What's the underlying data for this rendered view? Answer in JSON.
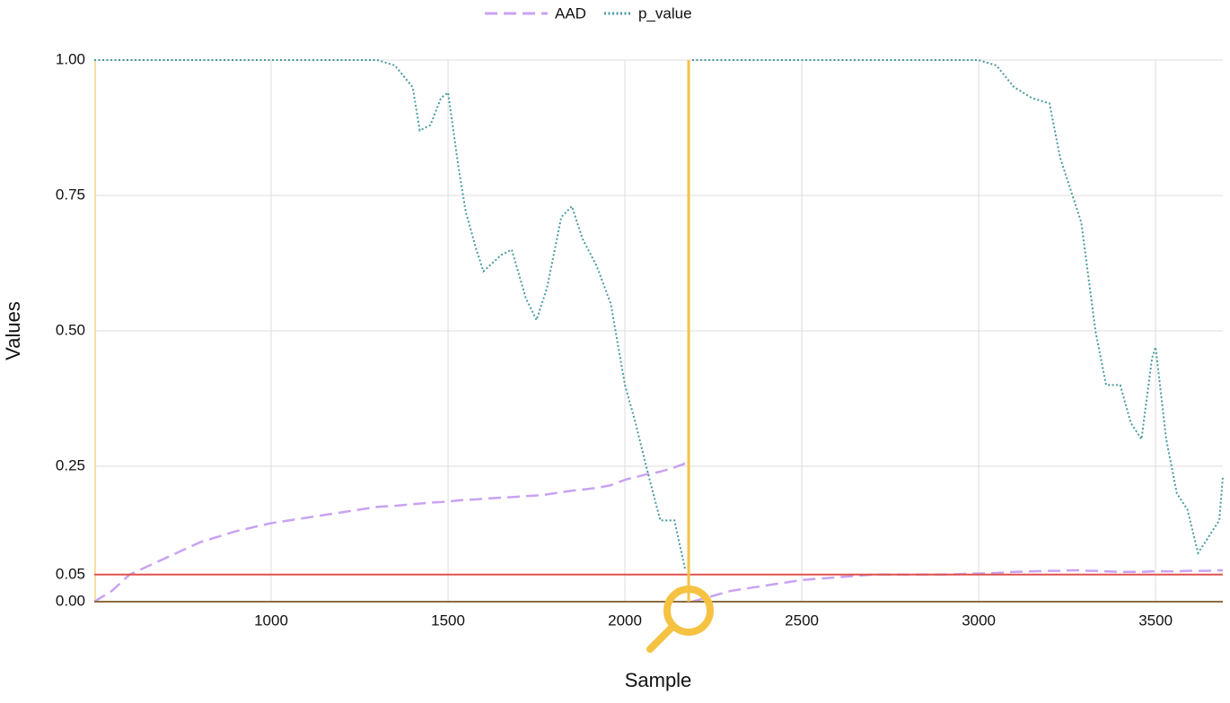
{
  "chart_data": {
    "type": "line",
    "xlabel": "Sample",
    "ylabel": "Values",
    "x": [
      500,
      550,
      600,
      700,
      800,
      900,
      1000,
      1100,
      1200,
      1300,
      1350,
      1400,
      1420,
      1450,
      1480,
      1500,
      1530,
      1550,
      1580,
      1600,
      1650,
      1680,
      1720,
      1750,
      1780,
      1820,
      1850,
      1880,
      1920,
      1960,
      2000,
      2030,
      2060,
      2100,
      2140,
      2170,
      2180,
      2190,
      2300,
      2400,
      2500,
      2600,
      2700,
      2800,
      2900,
      3000,
      3050,
      3100,
      3150,
      3200,
      3230,
      3260,
      3290,
      3310,
      3330,
      3360,
      3400,
      3430,
      3460,
      3490,
      3500,
      3530,
      3560,
      3590,
      3620,
      3650,
      3680,
      3690
    ],
    "series": [
      {
        "name": "AAD",
        "color": "#c9a2f2",
        "style": "dashed",
        "values": [
          0,
          0.02,
          0.05,
          0.08,
          0.11,
          0.13,
          0.145,
          0.155,
          0.165,
          0.175,
          0.177,
          0.18,
          0.181,
          0.183,
          0.184,
          0.185,
          0.187,
          0.188,
          0.189,
          0.19,
          0.192,
          0.193,
          0.195,
          0.196,
          0.198,
          0.202,
          0.205,
          0.207,
          0.21,
          0.215,
          0.225,
          0.23,
          0.235,
          0.24,
          0.248,
          0.255,
          null,
          0,
          0.02,
          0.03,
          0.04,
          0.045,
          0.05,
          0.05,
          0.05,
          0.052,
          0.053,
          0.055,
          0.056,
          0.057,
          0.057,
          0.058,
          0.058,
          0.057,
          0.057,
          0.056,
          0.055,
          0.055,
          0.055,
          0.056,
          0.056,
          0.056,
          0.056,
          0.057,
          0.057,
          0.057,
          0.058,
          0.058
        ]
      },
      {
        "name": "p_value",
        "color": "#4a9a9c",
        "style": "dotted",
        "values": [
          1,
          1,
          1,
          1,
          1,
          1,
          1,
          1,
          1,
          1,
          0.99,
          0.95,
          0.87,
          0.88,
          0.93,
          0.94,
          0.8,
          0.72,
          0.65,
          0.61,
          0.64,
          0.65,
          0.56,
          0.52,
          0.58,
          0.71,
          0.73,
          0.67,
          0.62,
          0.55,
          0.4,
          0.33,
          0.25,
          0.15,
          0.15,
          0.06,
          null,
          1,
          1,
          1,
          1,
          1,
          1,
          1,
          1,
          1,
          0.99,
          0.95,
          0.93,
          0.92,
          0.82,
          0.76,
          0.7,
          0.6,
          0.5,
          0.4,
          0.4,
          0.33,
          0.3,
          0.45,
          0.47,
          0.3,
          0.2,
          0.17,
          0.09,
          0.12,
          0.15,
          0.23
        ]
      }
    ],
    "xlim": [
      500,
      3690
    ],
    "ylim": [
      0,
      1
    ],
    "xticks": [
      1000,
      1500,
      2000,
      2500,
      3000,
      3500
    ],
    "yticks": [
      {
        "value": 0,
        "label": "0.00"
      },
      0.05,
      0.25,
      {
        "value": 0.5,
        "label": "0.50"
      },
      0.75,
      {
        "value": 1,
        "label": "1.00"
      }
    ],
    "threshold": {
      "value": 0.05,
      "color": "#e0524e"
    },
    "drift_x": {
      "value": 2180,
      "color": "#f5c242"
    },
    "grid": true,
    "legend": "top"
  }
}
